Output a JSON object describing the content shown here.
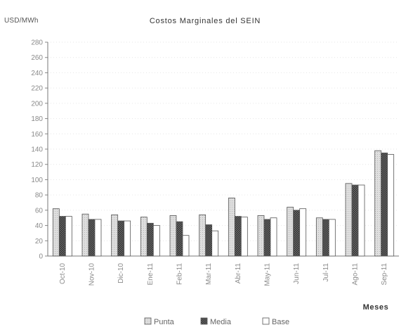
{
  "chart_data": {
    "type": "bar",
    "title": "Costos Marginales del SEIN",
    "ylabel": "USD/MWh",
    "xlabel": "Meses",
    "ylim": [
      0,
      280
    ],
    "yticks": [
      0,
      20,
      40,
      60,
      80,
      100,
      120,
      140,
      160,
      180,
      200,
      220,
      240,
      260,
      280
    ],
    "grid": true,
    "legend_position": "bottom",
    "categories": [
      "Oct-10",
      "Nov-10",
      "Dic-10",
      "Ene-11",
      "Feb-11",
      "Mar-11",
      "Abr-11",
      "May-11",
      "Jun-11",
      "Jul-11",
      "Ago-11",
      "Sep-11"
    ],
    "series": [
      {
        "name": "Punta",
        "color": "#d8d8d8",
        "values": [
          62,
          55,
          54,
          51,
          53,
          54,
          76,
          53,
          64,
          50,
          95,
          138
        ]
      },
      {
        "name": "Media",
        "color": "#555555",
        "values": [
          52,
          48,
          46,
          43,
          45,
          41,
          52,
          48,
          60,
          48,
          93,
          135
        ]
      },
      {
        "name": "Base",
        "color": "#ffffff",
        "values": [
          52,
          48,
          46,
          40,
          27,
          33,
          51,
          50,
          62,
          48,
          93,
          133
        ]
      }
    ]
  }
}
